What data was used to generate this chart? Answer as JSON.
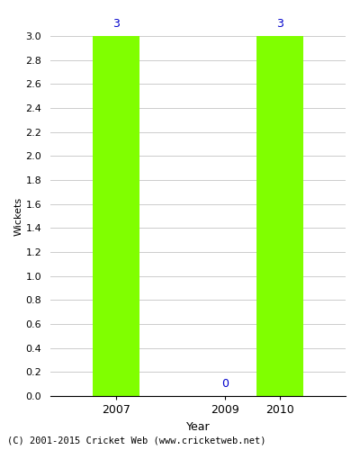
{
  "years": [
    2007,
    2009,
    2010
  ],
  "values": [
    3,
    0,
    3
  ],
  "bar_color": "#80FF00",
  "label_color": "#0000CC",
  "xlabel": "Year",
  "ylabel": "Wickets",
  "ylim_max": 3.0,
  "background_color": "#ffffff",
  "grid_color": "#cccccc",
  "footnote": "(C) 2001-2015 Cricket Web (www.cricketweb.net)",
  "bar_width": 0.85,
  "xlim": [
    2005.8,
    2011.2
  ]
}
